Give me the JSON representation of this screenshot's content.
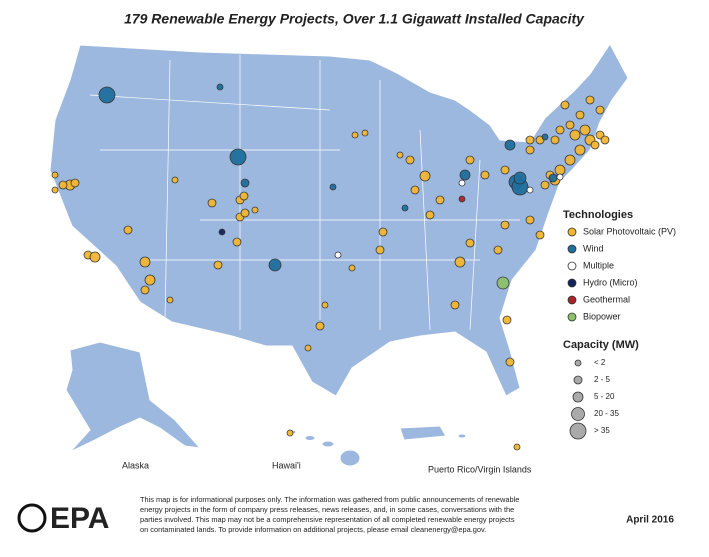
{
  "title": "179 Renewable Energy Projects, Over 1.1 Gigawatt Installed Capacity",
  "legend": {
    "technologies_title": "Technologies",
    "technologies": [
      {
        "label": "Solar Photovoltaic (PV)",
        "color": "#f2b632"
      },
      {
        "label": "Wind",
        "color": "#1f6e9c"
      },
      {
        "label": "Multiple",
        "color": "#ffffff"
      },
      {
        "label": "Hydro (Micro)",
        "color": "#14245e"
      },
      {
        "label": "Geothermal",
        "color": "#a8262a"
      },
      {
        "label": "Biopower",
        "color": "#8cc06a"
      }
    ],
    "capacity_title": "Capacity (MW)",
    "capacity": [
      "< 2",
      "2 - 5",
      "5 - 20",
      "20 - 35",
      "> 35"
    ]
  },
  "map_labels": {
    "alaska": "Alaska",
    "hawaii": "Hawai'i",
    "puerto_rico": "Puerto Rico/Virgin Islands"
  },
  "logo": "EPA",
  "disclaimer": [
    "This map is for informational purposes only. The information was gathered from public announcements of renewable",
    "energy projects in the form of company press releases, news releases, and, in some cases, conversations with the",
    "parties involved. This map may not be a comprehensive representation of all completed renewable energy projects",
    "on contaminated lands. To provide information on additional projects, please email cleanenergy@epa.gov."
  ],
  "date": "April 2016"
}
